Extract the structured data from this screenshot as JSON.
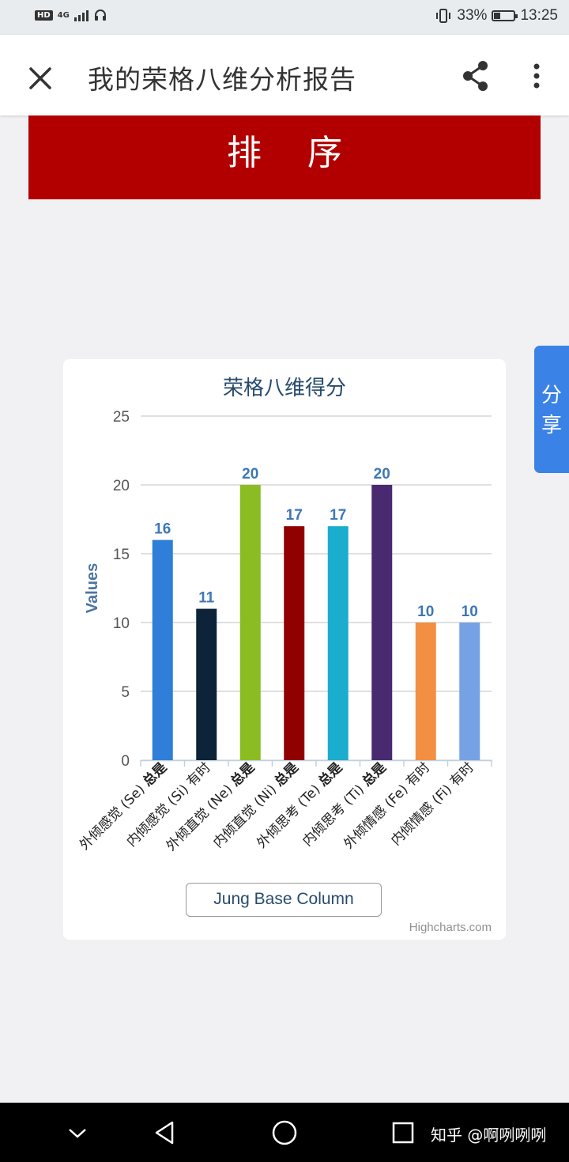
{
  "status_bar": {
    "network_badge": "HD",
    "network_type": "4G",
    "battery": "33%",
    "battery_level": 0.33,
    "time": "13:25"
  },
  "app_bar": {
    "title": "我的荣格八维分析报告",
    "icons": [
      "close-icon",
      "share-icon",
      "more-vert-icon"
    ]
  },
  "banner": {
    "text": "排 序",
    "color": "#b20000"
  },
  "side_tab": {
    "chars": [
      "分",
      "享"
    ],
    "color": "#3b82e6"
  },
  "chart_data": {
    "type": "bar",
    "title": "荣格八维得分",
    "ylabel": "Values",
    "xlabel": "",
    "ylim": [
      0,
      25
    ],
    "yticks": [
      "0",
      "5",
      "10",
      "15",
      "20",
      "25"
    ],
    "grid": true,
    "categories": [
      {
        "name": "外倾感觉 (Se)",
        "freq": "总是",
        "freq_bold": true
      },
      {
        "name": "内倾感觉 (Si)",
        "freq": "有时",
        "freq_bold": false
      },
      {
        "name": "外倾直觉 (Ne)",
        "freq": "总是",
        "freq_bold": true
      },
      {
        "name": "内倾直觉 (Ni)",
        "freq": "总是",
        "freq_bold": true
      },
      {
        "name": "外倾思考 (Te)",
        "freq": "总是",
        "freq_bold": true
      },
      {
        "name": "内倾思考 (Ti)",
        "freq": "总是",
        "freq_bold": true
      },
      {
        "name": "外倾情感 (Fe)",
        "freq": "有时",
        "freq_bold": false
      },
      {
        "name": "内倾情感 (Fi)",
        "freq": "有时",
        "freq_bold": false
      }
    ],
    "series": [
      {
        "name": "Jung Base Column",
        "values": [
          16,
          11,
          20,
          17,
          17,
          20,
          10,
          10
        ],
        "labels": [
          "16",
          "11",
          "20",
          "17",
          "17",
          "20",
          "10",
          "10"
        ],
        "colors": [
          "#2f7ed8",
          "#0d233a",
          "#8bbc21",
          "#910000",
          "#1aadce",
          "#492970",
          "#f28f43",
          "#77a1e5"
        ]
      }
    ],
    "legend": "bottom-center",
    "credits": "Highcharts.com"
  },
  "nav_bar": {
    "icons": [
      "chevron-down-icon",
      "back-triangle-icon",
      "home-circle-icon",
      "recents-square-icon"
    ],
    "brand": "知乎 @啊咧咧咧"
  }
}
